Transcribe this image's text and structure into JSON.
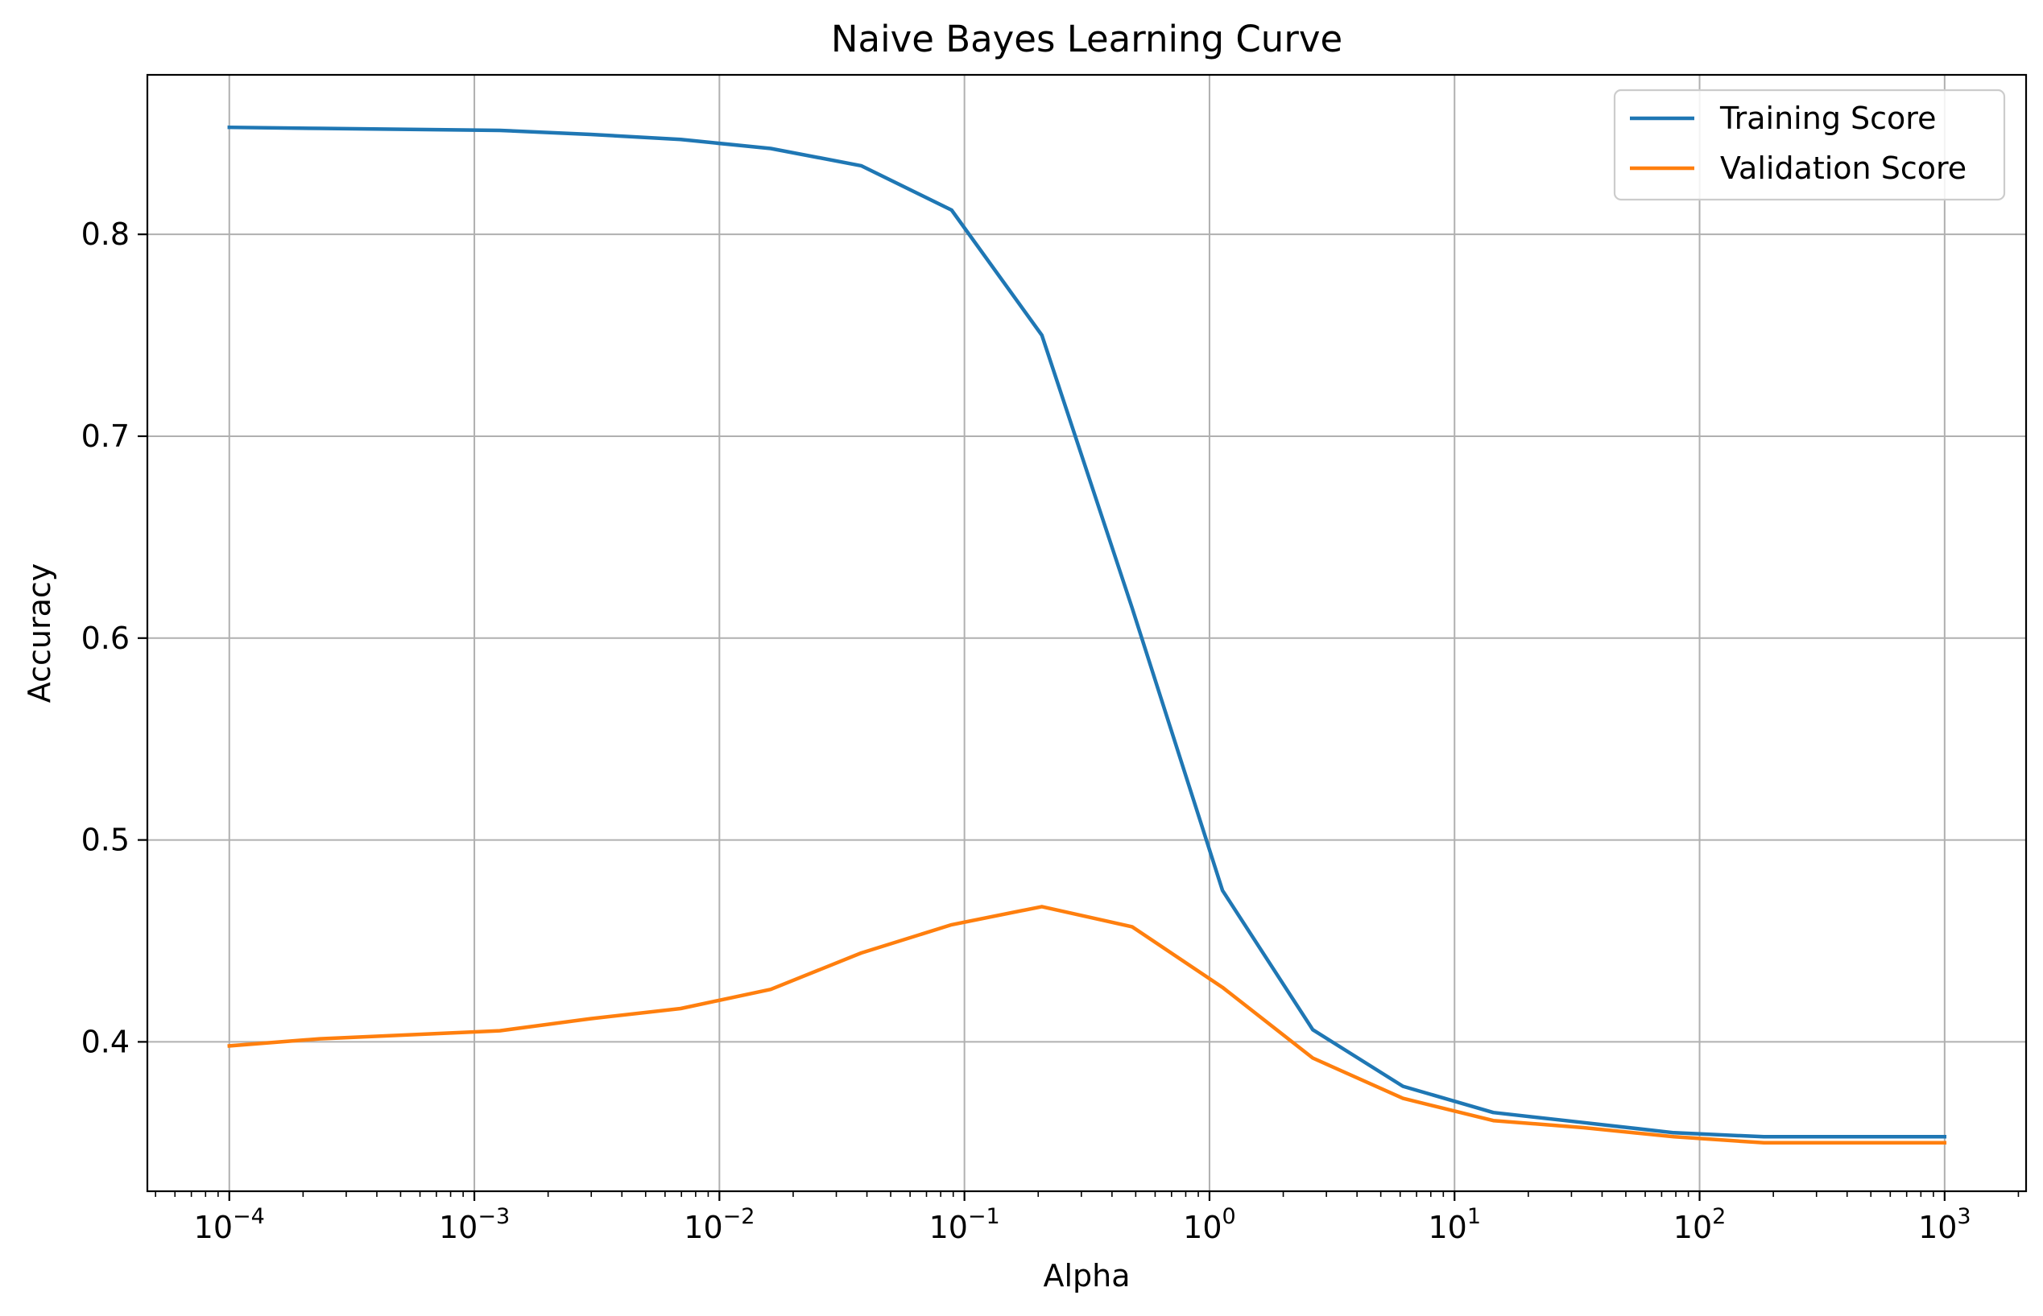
{
  "chart_data": {
    "type": "line",
    "title": "Naive Bayes Learning Curve",
    "xlabel": "Alpha",
    "ylabel": "Accuracy",
    "xscale": "log",
    "xlim": [
      4.63e-05,
      2150
    ],
    "ylim": [
      0.326,
      0.879
    ],
    "grid": true,
    "legend_position": "top-right",
    "x_ticks": [
      {
        "base": "10",
        "exp": "−4",
        "value": 0.0001
      },
      {
        "base": "10",
        "exp": "−3",
        "value": 0.001
      },
      {
        "base": "10",
        "exp": "−2",
        "value": 0.01
      },
      {
        "base": "10",
        "exp": "−1",
        "value": 0.1
      },
      {
        "base": "10",
        "exp": "0",
        "value": 1
      },
      {
        "base": "10",
        "exp": "1",
        "value": 10
      },
      {
        "base": "10",
        "exp": "2",
        "value": 100
      },
      {
        "base": "10",
        "exp": "3",
        "value": 1000
      }
    ],
    "y_ticks": [
      {
        "label": "0.4",
        "value": 0.4
      },
      {
        "label": "0.5",
        "value": 0.5
      },
      {
        "label": "0.6",
        "value": 0.6
      },
      {
        "label": "0.7",
        "value": 0.7
      },
      {
        "label": "0.8",
        "value": 0.8
      }
    ],
    "x": [
      0.0001,
      0.000234,
      0.000546,
      0.00127,
      0.00298,
      0.00695,
      0.0162,
      0.0379,
      0.0886,
      0.207,
      0.483,
      1.13,
      2.64,
      6.16,
      14.4,
      33.6,
      78.5,
      183,
      428,
      1000
    ],
    "series": [
      {
        "name": "Training Score",
        "color": "#1f77b4",
        "values": [
          0.853,
          0.8525,
          0.852,
          0.8515,
          0.8495,
          0.847,
          0.8425,
          0.834,
          0.812,
          0.75,
          0.615,
          0.475,
          0.406,
          0.378,
          0.365,
          0.36,
          0.355,
          0.353,
          0.353,
          0.353
        ]
      },
      {
        "name": "Validation Score",
        "color": "#ff7f0e",
        "values": [
          0.398,
          0.4015,
          0.4035,
          0.4055,
          0.4115,
          0.4165,
          0.426,
          0.444,
          0.458,
          0.467,
          0.457,
          0.427,
          0.392,
          0.372,
          0.361,
          0.3575,
          0.353,
          0.35,
          0.35,
          0.35
        ]
      }
    ]
  }
}
